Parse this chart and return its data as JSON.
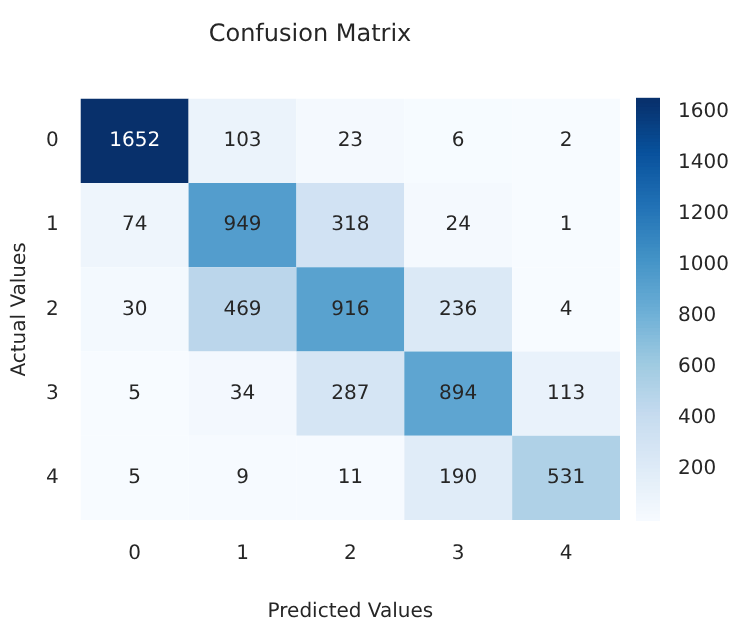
{
  "chart_data": {
    "type": "heatmap",
    "title": "Confusion Matrix",
    "xlabel": "Predicted Values",
    "ylabel": "Actual Values",
    "categories": [
      "0",
      "1",
      "2",
      "3",
      "4"
    ],
    "y_categories": [
      "0",
      "1",
      "2",
      "3",
      "4"
    ],
    "cells": [
      [
        1652,
        103,
        23,
        6,
        2
      ],
      [
        74,
        949,
        318,
        24,
        1
      ],
      [
        30,
        469,
        916,
        236,
        4
      ],
      [
        5,
        34,
        287,
        894,
        113
      ],
      [
        5,
        9,
        11,
        190,
        531
      ]
    ],
    "clim": [
      1,
      1652
    ],
    "cticks": [
      200,
      400,
      600,
      800,
      1000,
      1200,
      1400,
      1600
    ],
    "data_labels": true
  }
}
